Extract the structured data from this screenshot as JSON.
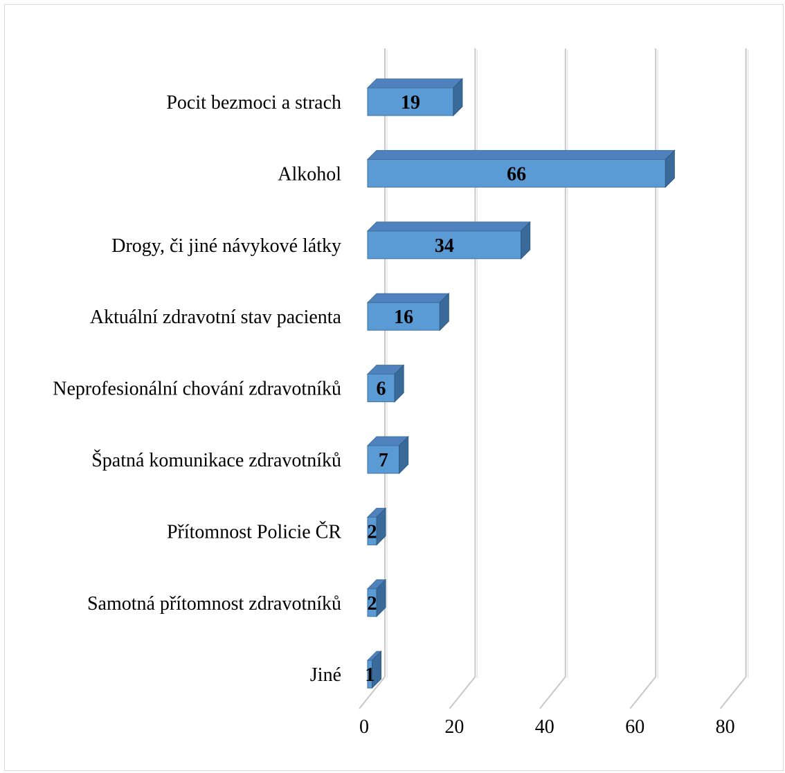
{
  "chart_data": {
    "type": "bar",
    "orientation": "horizontal",
    "three_d": true,
    "categories": [
      "Pocit bezmoci a strach",
      "Alkohol",
      "Drogy, či jiné návykové látky",
      "Aktuální zdravotní stav pacienta",
      "Neprofesionální chování zdravotníků",
      "Špatná komunikace zdravotníků",
      "Přítomnost Policie ČR",
      "Samotná přítomnost zdravotníků",
      "Jiné"
    ],
    "values": [
      19,
      66,
      34,
      16,
      6,
      7,
      2,
      2,
      1
    ],
    "data_labels": [
      "19",
      "66",
      "34",
      "16",
      "6",
      "7",
      "2",
      "2",
      "1"
    ],
    "xlim": [
      0,
      80
    ],
    "x_ticks": [
      0,
      20,
      40,
      60,
      80
    ],
    "x_tick_labels": [
      "0",
      "20",
      "40",
      "60",
      "80"
    ],
    "grid": true,
    "legend": "none",
    "colors": {
      "bar_front": "#5b9bd5",
      "bar_top": "#4f81bd",
      "bar_side": "#3a6a9a",
      "grid": "#c8c8c8"
    }
  }
}
